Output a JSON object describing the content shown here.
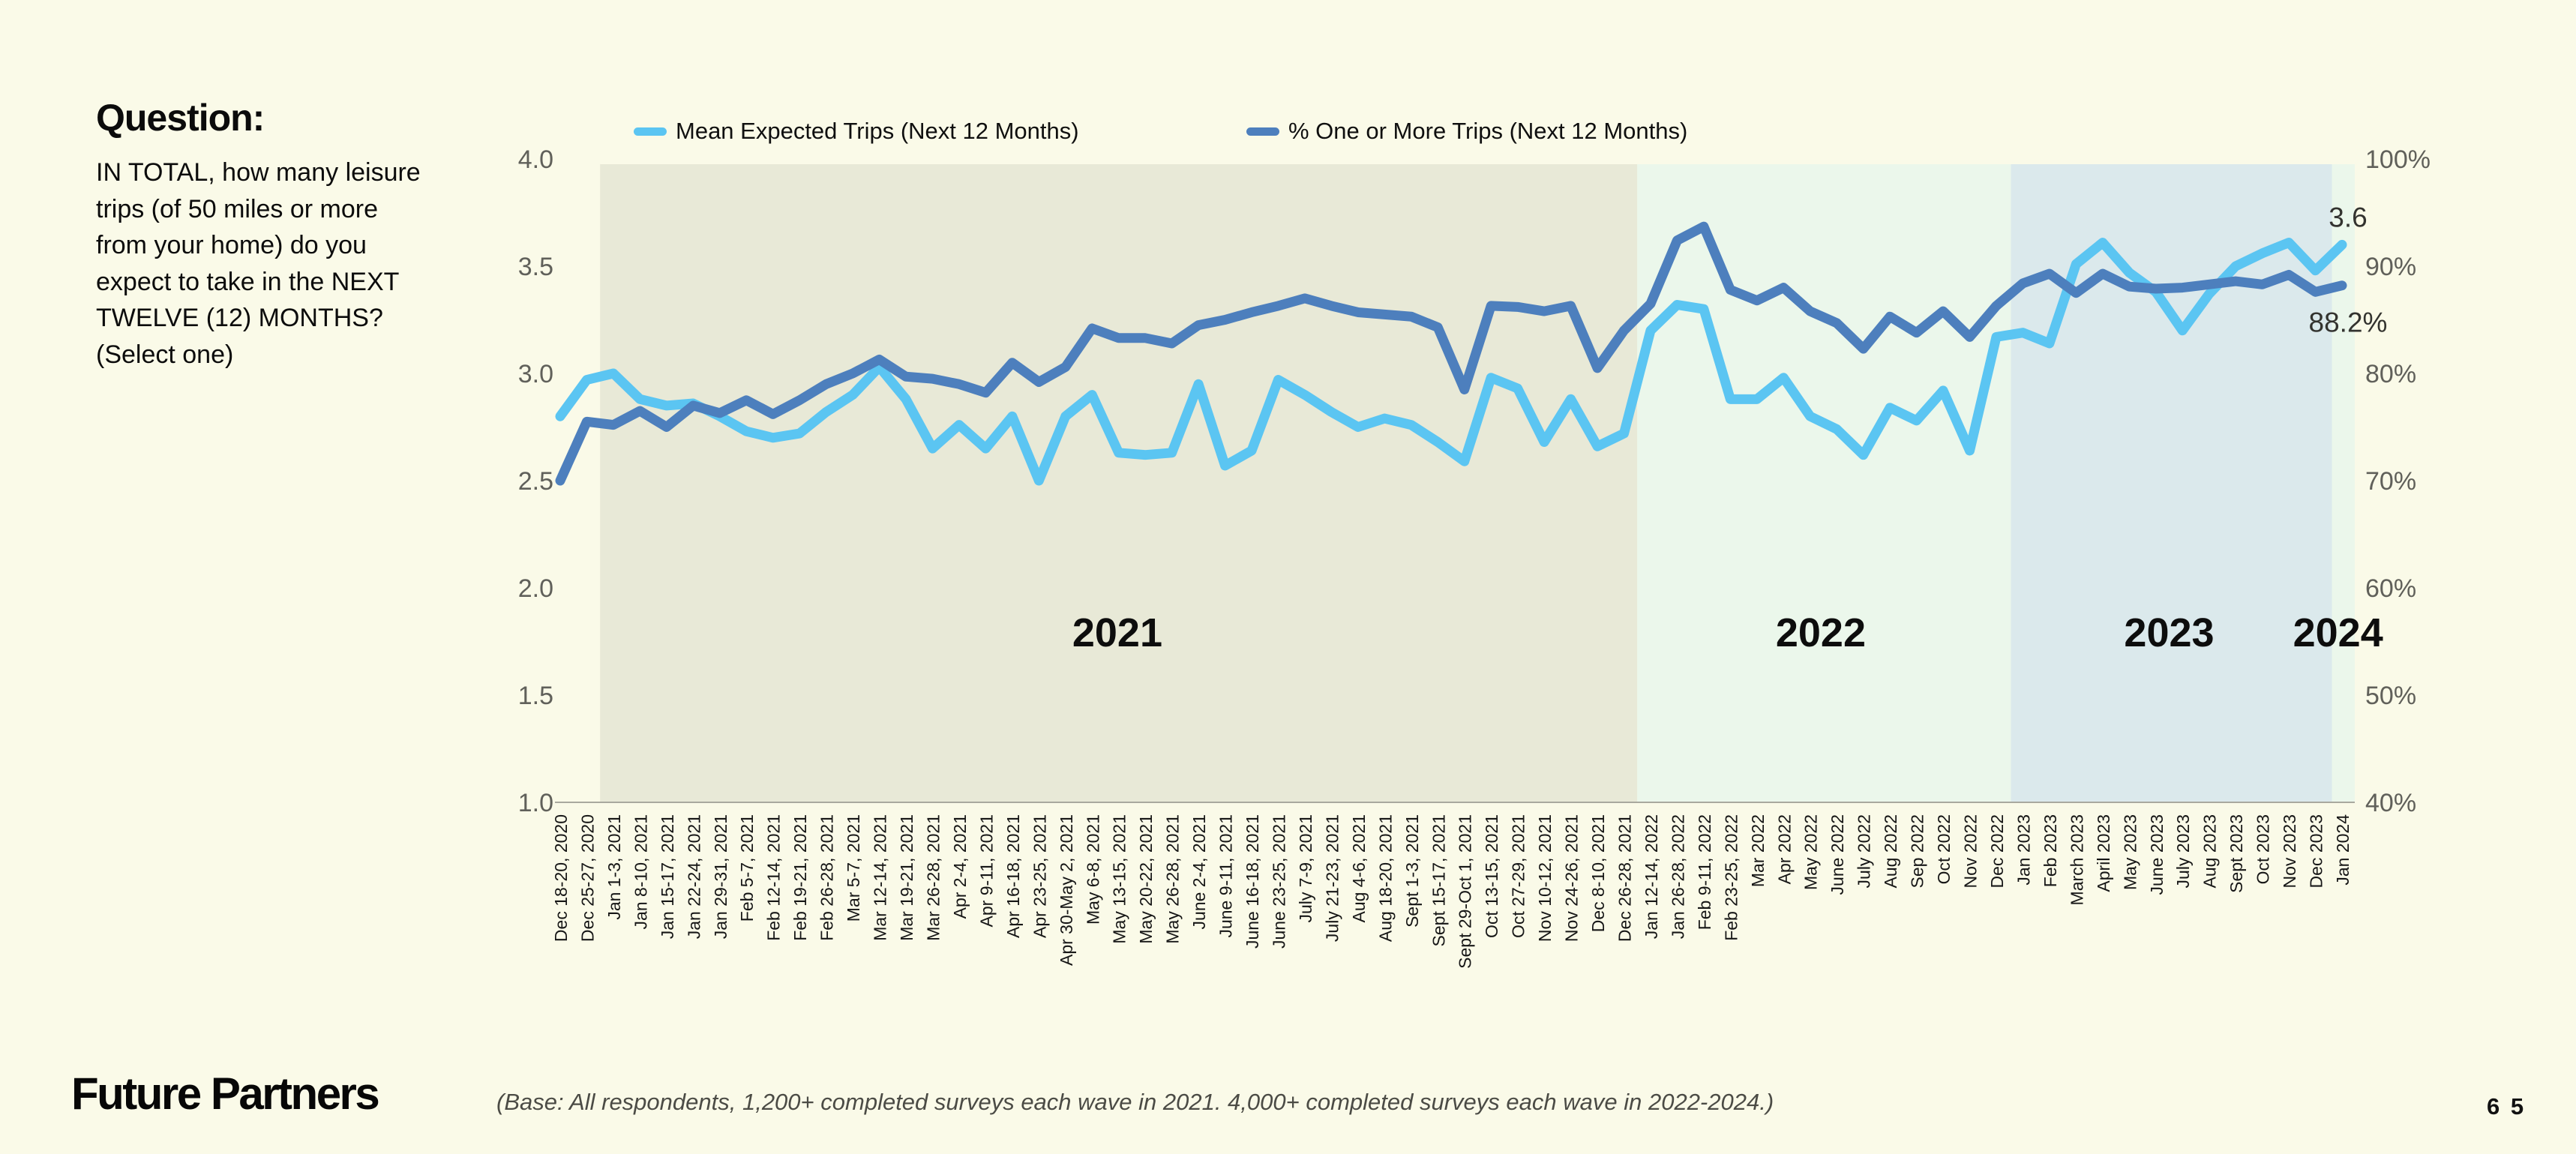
{
  "question": {
    "heading": "Question:",
    "text": "IN TOTAL, how many leisure trips (of 50 miles or more from your home) do you expect to take in the NEXT TWELVE (12) MONTHS? (Select one)"
  },
  "legend": [
    {
      "label": "Mean Expected Trips (Next 12 Months)",
      "color": "#5bc5f2"
    },
    {
      "label": "% One or More Trips (Next 12 Months)",
      "color": "#4d7fbd"
    }
  ],
  "chart_data": {
    "type": "line",
    "grid": false,
    "legend_position": "top",
    "x_labels": [
      "Dec 18-20, 2020",
      "Dec 25-27, 2020",
      "Jan 1-3, 2021",
      "Jan 8-10, 2021",
      "Jan 15-17, 2021",
      "Jan 22-24, 2021",
      "Jan 29-31, 2021",
      "Feb 5-7, 2021",
      "Feb 12-14, 2021",
      "Feb 19-21, 2021",
      "Feb 26-28, 2021",
      "Mar 5-7, 2021",
      "Mar 12-14, 2021",
      "Mar 19-21, 2021",
      "Mar 26-28, 2021",
      "Apr 2-4, 2021",
      "Apr 9-11, 2021",
      "Apr 16-18, 2021",
      "Apr 23-25, 2021",
      "Apr 30-May 2, 2021",
      "May 6-8, 2021",
      "May 13-15, 2021",
      "May 20-22, 2021",
      "May 26-28, 2021",
      "June 2-4, 2021",
      "June 9-11, 2021",
      "June 16-18, 2021",
      "June 23-25, 2021",
      "July 7-9, 2021",
      "July 21-23, 2021",
      "Aug 4-6, 2021",
      "Aug 18-20, 2021",
      "Sept 1-3, 2021",
      "Sept 15-17, 2021",
      "Sept 29-Oct 1, 2021",
      "Oct 13-15, 2021",
      "Oct 27-29, 2021",
      "Nov 10-12, 2021",
      "Nov 24-26, 2021",
      "Dec 8-10, 2021",
      "Dec 26-28, 2021",
      "Jan 12-14, 2022",
      "Jan 26-28, 2022",
      "Feb 9-11, 2022",
      "Feb 23-25, 2022",
      "Mar 2022",
      "Apr 2022",
      "May 2022",
      "June 2022",
      "July 2022",
      "Aug 2022",
      "Sep 2022",
      "Oct 2022",
      "Nov 2022",
      "Dec 2022",
      "Jan 2023",
      "Feb 2023",
      "March 2023",
      "April 2023",
      "May 2023",
      "June 2023",
      "July 2023",
      "Aug 2023",
      "Sept 2023",
      "Oct 2023",
      "Nov 2023",
      "Dec 2023",
      "Jan 2024"
    ],
    "series": [
      {
        "name": "Mean Expected Trips (Next 12 Months)",
        "axis": "left",
        "color": "#5bc5f2",
        "values": [
          2.8,
          2.97,
          3.0,
          2.88,
          2.85,
          2.86,
          2.8,
          2.73,
          2.7,
          2.72,
          2.82,
          2.9,
          3.03,
          2.88,
          2.65,
          2.76,
          2.65,
          2.8,
          2.5,
          2.8,
          2.9,
          2.63,
          2.62,
          2.63,
          2.95,
          2.57,
          2.64,
          2.97,
          2.9,
          2.82,
          2.75,
          2.79,
          2.76,
          2.68,
          2.59,
          2.98,
          2.93,
          2.68,
          2.88,
          2.66,
          2.72,
          3.2,
          3.32,
          3.3,
          2.88,
          2.88,
          2.98,
          2.8,
          2.74,
          2.62,
          2.84,
          2.78,
          2.92,
          2.64,
          3.17,
          3.19,
          3.14,
          3.51,
          3.61,
          3.47,
          3.38,
          3.2,
          3.37,
          3.5,
          3.56,
          3.61,
          3.48,
          3.6
        ]
      },
      {
        "name": "% One or More Trips (Next 12 Months)",
        "axis": "right",
        "color": "#4d7fbd",
        "values": [
          70.0,
          75.5,
          75.2,
          76.5,
          75.0,
          77.0,
          76.3,
          77.5,
          76.2,
          77.5,
          79.0,
          80.0,
          81.3,
          79.7,
          79.5,
          79.0,
          78.2,
          81.0,
          79.2,
          80.6,
          84.2,
          83.3,
          83.3,
          82.8,
          84.5,
          85.0,
          85.7,
          86.3,
          87.0,
          86.3,
          85.7,
          85.5,
          85.3,
          84.3,
          78.5,
          86.3,
          86.2,
          85.8,
          86.3,
          80.5,
          84.0,
          86.5,
          92.4,
          93.7,
          87.8,
          86.8,
          88.0,
          85.8,
          84.7,
          82.3,
          85.3,
          83.8,
          85.8,
          83.4,
          86.3,
          88.4,
          89.3,
          87.5,
          89.3,
          88.1,
          87.9,
          88.0,
          88.3,
          88.6,
          88.3,
          89.2,
          87.6,
          88.2
        ]
      }
    ],
    "left_axis": {
      "min": 1.0,
      "max": 4.0,
      "ticks": [
        "4.0",
        "3.5",
        "3.0",
        "2.5",
        "2.0",
        "1.5",
        "1.0"
      ]
    },
    "right_axis": {
      "min": 40,
      "max": 100,
      "ticks": [
        "100%",
        "90%",
        "80%",
        "70%",
        "60%",
        "50%",
        "40%"
      ]
    },
    "bands": [
      {
        "year": "2021",
        "start": 1.5,
        "end": 40.5,
        "color": "#e8e9d7",
        "label_at": 20.95
      },
      {
        "year": "2022",
        "start": 40.5,
        "end": 54.55,
        "color": "#ebf7eb",
        "label_at": 47.4
      },
      {
        "year": "2023",
        "start": 54.55,
        "end": 66.62,
        "color": "#dbe9ec",
        "label_at": 60.5
      },
      {
        "year": "2024",
        "start": 66.62,
        "end": 67.5,
        "color": "#ebf7eb",
        "label_at": 66.85
      }
    ],
    "annotations": [
      {
        "text": "3.6",
        "series": 0,
        "index": 67
      },
      {
        "text": "88.2%",
        "series": 1,
        "index": 67
      }
    ]
  },
  "footer": {
    "logo": "Future Partners",
    "base_note": "(Base: All respondents, 1,200+ completed surveys each wave in 2021. 4,000+ completed surveys each wave in 2022-2024.)",
    "page_number": "6 5"
  }
}
